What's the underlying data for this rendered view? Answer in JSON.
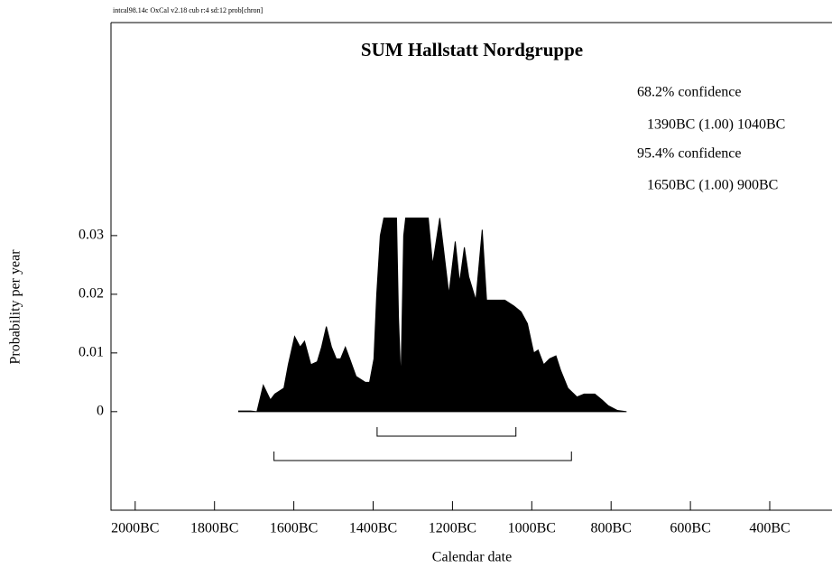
{
  "chart_data": {
    "type": "area",
    "header": "intcal98.14c  OxCal v2.18 cub r:4 sd:12 prob[chron]",
    "title": "SUM Hallstatt Nordgruppe",
    "x_label": "Calendar date",
    "y_label": "Probability per year",
    "color": "#000000",
    "ranges": [
      {
        "label": "68.2% confidence",
        "text": "1390BC (1.00) 1040BC",
        "from": -1390,
        "to": -1040
      },
      {
        "label": "95.4% confidence",
        "text": "1650BC (1.00) 900BC",
        "from": -1650,
        "to": -900
      }
    ],
    "xlim": [
      -2061,
      -243
    ],
    "xticks": [
      {
        "value": -2000,
        "label": "2000BC"
      },
      {
        "value": -1800,
        "label": "1800BC"
      },
      {
        "value": -1600,
        "label": "1600BC"
      },
      {
        "value": -1400,
        "label": "1400BC"
      },
      {
        "value": -1200,
        "label": "1200BC"
      },
      {
        "value": -1000,
        "label": "1000BC"
      },
      {
        "value": -800,
        "label": "800BC"
      },
      {
        "value": -600,
        "label": "600BC"
      },
      {
        "value": -400,
        "label": "400BC"
      }
    ],
    "ylim": [
      -0.0168,
      0.0663
    ],
    "yticks": [
      0,
      0.01,
      0.02,
      0.03
    ],
    "x": [
      -1739,
      -1709,
      -1693,
      -1677,
      -1659,
      -1648,
      -1625,
      -1614,
      -1598,
      -1584,
      -1573,
      -1557,
      -1541,
      -1530,
      -1518,
      -1505,
      -1493,
      -1482,
      -1470,
      -1459,
      -1443,
      -1420,
      -1409,
      -1398,
      -1391,
      -1382,
      -1373,
      -1341,
      -1336,
      -1330,
      -1323,
      -1318,
      -1261,
      -1250,
      -1232,
      -1223,
      -1209,
      -1193,
      -1182,
      -1170,
      -1159,
      -1141,
      -1125,
      -1114,
      -1091,
      -1068,
      -1045,
      -1027,
      -1011,
      -995,
      -984,
      -970,
      -955,
      -939,
      -927,
      -909,
      -886,
      -868,
      -841,
      -823,
      -807,
      -784,
      -761
    ],
    "values": [
      0.0001,
      0.0001,
      0,
      0.0045,
      0.002,
      0.003,
      0.004,
      0.008,
      0.0128,
      0.011,
      0.012,
      0.008,
      0.0085,
      0.011,
      0.0145,
      0.011,
      0.009,
      0.009,
      0.011,
      0.009,
      0.006,
      0.005,
      0.005,
      0.009,
      0.02,
      0.03,
      0.033,
      0.033,
      0.016,
      0.005,
      0.03,
      0.033,
      0.033,
      0.025,
      0.033,
      0.028,
      0.02,
      0.029,
      0.022,
      0.028,
      0.023,
      0.019,
      0.031,
      0.019,
      0.019,
      0.019,
      0.018,
      0.017,
      0.015,
      0.01,
      0.0105,
      0.008,
      0.009,
      0.0095,
      0.007,
      0.004,
      0.0025,
      0.003,
      0.003,
      0.002,
      0.001,
      0.0002,
      0
    ]
  }
}
